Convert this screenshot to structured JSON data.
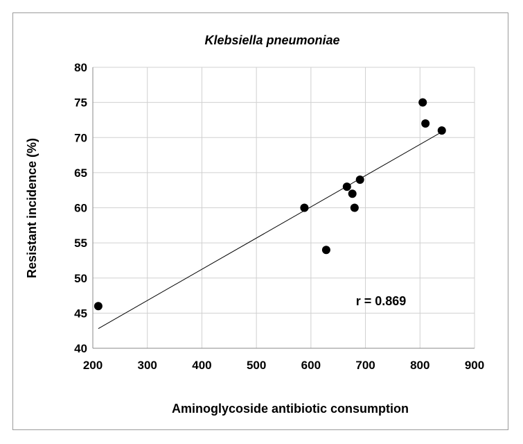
{
  "chart_data": {
    "type": "scatter",
    "title": "Klebsiella pneumoniae",
    "xlabel": "Aminoglycoside antibiotic consumption",
    "ylabel": "Resistant incidence (%)",
    "xlim": [
      200,
      900
    ],
    "ylim": [
      40,
      80
    ],
    "xticks": [
      "200",
      "300",
      "400",
      "500",
      "600",
      "700",
      "800",
      "900"
    ],
    "yticks": [
      "40",
      "45",
      "50",
      "55",
      "60",
      "65",
      "70",
      "75",
      "80"
    ],
    "grid": true,
    "points": [
      {
        "x": 210,
        "y": 46
      },
      {
        "x": 588,
        "y": 60
      },
      {
        "x": 628,
        "y": 54
      },
      {
        "x": 666,
        "y": 63
      },
      {
        "x": 676,
        "y": 62
      },
      {
        "x": 680,
        "y": 60
      },
      {
        "x": 690,
        "y": 64
      },
      {
        "x": 805,
        "y": 75
      },
      {
        "x": 810,
        "y": 72
      },
      {
        "x": 840,
        "y": 71
      }
    ],
    "trendline": {
      "x": [
        210,
        840
      ],
      "y": [
        42.8,
        70.8
      ]
    },
    "annotation": "r = 0.869"
  }
}
